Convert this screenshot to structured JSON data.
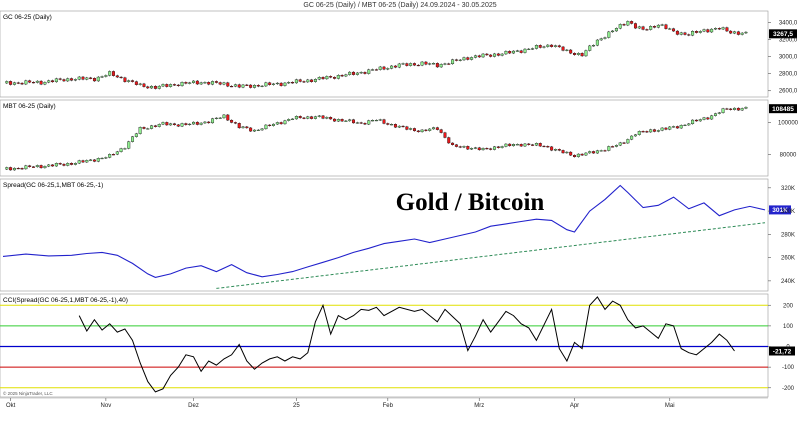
{
  "header": "GC 06-25 (Daily) / MBT 06-25 (Daily)  24.09.2024 - 30.05.2025",
  "watermark": "Gold / Bitcoin",
  "copyright": "© 2025 NinjaTrader, LLC",
  "colors": {
    "bull": "#90EE90",
    "bear": "#E8191C",
    "spread_line": "#2222CC",
    "trendline": "#2E8B57",
    "cci_line": "#000000",
    "level_200": "#E0E000",
    "level_100": "#32CD32",
    "level_0": "#0000CC",
    "level_m100": "#CC0000"
  },
  "x_labels": [
    "Okt",
    "Nov",
    "Dez",
    "25",
    "Feb",
    "Mrz",
    "Apr",
    "Mai"
  ],
  "chart_data": [
    {
      "type": "candlestick",
      "title": "GC 06-25 (Daily)",
      "y_ticks": [
        "3400,0",
        "3200,0",
        "3000,0",
        "2800,0",
        "2600,0"
      ],
      "ylim": [
        2550,
        3500
      ],
      "last_value": "3267,5",
      "close_path": [
        [
          0,
          2690
        ],
        [
          10,
          2700
        ],
        [
          18,
          2740
        ],
        [
          24,
          2740
        ],
        [
          28,
          2800
        ],
        [
          32,
          2730
        ],
        [
          36,
          2660
        ],
        [
          40,
          2640
        ],
        [
          46,
          2680
        ],
        [
          52,
          2700
        ],
        [
          58,
          2680
        ],
        [
          62,
          2650
        ],
        [
          66,
          2660
        ],
        [
          72,
          2680
        ],
        [
          80,
          2720
        ],
        [
          86,
          2760
        ],
        [
          92,
          2800
        ],
        [
          98,
          2850
        ],
        [
          104,
          2900
        ],
        [
          110,
          2920
        ],
        [
          114,
          2900
        ],
        [
          118,
          2940
        ],
        [
          122,
          2990
        ],
        [
          126,
          3010
        ],
        [
          132,
          3040
        ],
        [
          138,
          3090
        ],
        [
          144,
          3140
        ],
        [
          148,
          3060
        ],
        [
          152,
          3020
        ],
        [
          156,
          3190
        ],
        [
          160,
          3300
        ],
        [
          164,
          3420
        ],
        [
          166,
          3350
        ],
        [
          168,
          3310
        ],
        [
          172,
          3380
        ],
        [
          176,
          3290
        ],
        [
          180,
          3260
        ],
        [
          184,
          3310
        ],
        [
          188,
          3330
        ],
        [
          191,
          3290
        ],
        [
          195,
          3267.5
        ]
      ]
    },
    {
      "type": "candlestick",
      "title": "MBT 06-25 (Daily)",
      "y_ticks": [
        "100000",
        "80000"
      ],
      "ylim": [
        68000,
        112000
      ],
      "last_value": "108485",
      "close_path": [
        [
          0,
          71000
        ],
        [
          8,
          72500
        ],
        [
          16,
          74000
        ],
        [
          22,
          76000
        ],
        [
          28,
          79000
        ],
        [
          32,
          85000
        ],
        [
          36,
          96000
        ],
        [
          42,
          99000
        ],
        [
          48,
          98500
        ],
        [
          54,
          100500
        ],
        [
          58,
          104000
        ],
        [
          62,
          97000
        ],
        [
          66,
          95000
        ],
        [
          70,
          98000
        ],
        [
          76,
          102500
        ],
        [
          82,
          103500
        ],
        [
          88,
          101500
        ],
        [
          94,
          99500
        ],
        [
          98,
          101500
        ],
        [
          104,
          97000
        ],
        [
          110,
          94500
        ],
        [
          114,
          96500
        ],
        [
          118,
          85000
        ],
        [
          122,
          84500
        ],
        [
          126,
          83000
        ],
        [
          130,
          85000
        ],
        [
          136,
          86500
        ],
        [
          142,
          85500
        ],
        [
          146,
          82000
        ],
        [
          150,
          79500
        ],
        [
          154,
          81000
        ],
        [
          158,
          83500
        ],
        [
          162,
          86500
        ],
        [
          166,
          93000
        ],
        [
          170,
          95000
        ],
        [
          174,
          96000
        ],
        [
          178,
          98000
        ],
        [
          182,
          101000
        ],
        [
          186,
          104000
        ],
        [
          190,
          108500
        ],
        [
          195,
          108485
        ]
      ]
    },
    {
      "type": "line",
      "title": "Spread(GC 06-25,1,MBT 06-25,-1)",
      "y_ticks": [
        "320K",
        "300K",
        "280K",
        "260K",
        "240K"
      ],
      "ylim": [
        233000,
        325000
      ],
      "last_value": "301K",
      "series": [
        {
          "values": [
            [
              0,
              261000
            ],
            [
              6,
              263000
            ],
            [
              12,
              261500
            ],
            [
              18,
              262000
            ],
            [
              22,
              263500
            ],
            [
              26,
              264500
            ],
            [
              30,
              262000
            ],
            [
              34,
              255000
            ],
            [
              38,
              246000
            ],
            [
              40,
              243000
            ],
            [
              44,
              246000
            ],
            [
              48,
              251000
            ],
            [
              52,
              253000
            ],
            [
              56,
              248000
            ],
            [
              60,
              254000
            ],
            [
              64,
              247000
            ],
            [
              68,
              243500
            ],
            [
              72,
              245500
            ],
            [
              76,
              248000
            ],
            [
              80,
              252000
            ],
            [
              84,
              256000
            ],
            [
              88,
              260000
            ],
            [
              92,
              264500
            ],
            [
              96,
              268000
            ],
            [
              100,
              272000
            ],
            [
              104,
              274000
            ],
            [
              108,
              276000
            ],
            [
              112,
              273000
            ],
            [
              116,
              276000
            ],
            [
              120,
              279000
            ],
            [
              124,
              282000
            ],
            [
              128,
              287000
            ],
            [
              132,
              289000
            ],
            [
              136,
              291000
            ],
            [
              140,
              293000
            ],
            [
              144,
              292000
            ],
            [
              148,
              284000
            ],
            [
              150,
              282000
            ],
            [
              154,
              300000
            ],
            [
              158,
              310000
            ],
            [
              162,
              322000
            ],
            [
              164,
              316000
            ],
            [
              168,
              303000
            ],
            [
              172,
              305000
            ],
            [
              176,
              312000
            ],
            [
              180,
              302000
            ],
            [
              184,
              307000
            ],
            [
              188,
              296000
            ],
            [
              192,
              301000
            ],
            [
              196,
              304000
            ],
            [
              200,
              301000
            ]
          ]
        }
      ],
      "trendline": [
        [
          56,
          233500
        ],
        [
          200,
          290000
        ]
      ]
    },
    {
      "type": "line",
      "title": "CCI(Spread(GC 06-25,1,MBT 06-25,-1),40)",
      "y_ticks": [
        "200",
        "100",
        "0",
        "-100",
        "-200"
      ],
      "ylim": [
        -235,
        240
      ],
      "last_value": "-21,72",
      "levels": [
        200,
        100,
        0,
        -100,
        -200
      ],
      "series": [
        {
          "values": [
            [
              20,
              150
            ],
            [
              22,
              75
            ],
            [
              24,
              130
            ],
            [
              26,
              80
            ],
            [
              28,
              110
            ],
            [
              30,
              70
            ],
            [
              32,
              85
            ],
            [
              34,
              30
            ],
            [
              36,
              -80
            ],
            [
              38,
              -170
            ],
            [
              40,
              -220
            ],
            [
              42,
              -205
            ],
            [
              44,
              -140
            ],
            [
              46,
              -100
            ],
            [
              48,
              -40
            ],
            [
              50,
              -50
            ],
            [
              52,
              -120
            ],
            [
              54,
              -70
            ],
            [
              56,
              -90
            ],
            [
              58,
              -60
            ],
            [
              60,
              -40
            ],
            [
              62,
              10
            ],
            [
              64,
              -70
            ],
            [
              66,
              -110
            ],
            [
              68,
              -80
            ],
            [
              70,
              -60
            ],
            [
              72,
              -50
            ],
            [
              74,
              -70
            ],
            [
              76,
              -50
            ],
            [
              78,
              -60
            ],
            [
              80,
              -30
            ],
            [
              82,
              120
            ],
            [
              84,
              200
            ],
            [
              86,
              60
            ],
            [
              88,
              150
            ],
            [
              90,
              130
            ],
            [
              92,
              150
            ],
            [
              94,
              180
            ],
            [
              96,
              175
            ],
            [
              98,
              190
            ],
            [
              100,
              150
            ],
            [
              104,
              190
            ],
            [
              108,
              170
            ],
            [
              110,
              180
            ],
            [
              112,
              150
            ],
            [
              114,
              120
            ],
            [
              116,
              180
            ],
            [
              118,
              145
            ],
            [
              120,
              110
            ],
            [
              122,
              -20
            ],
            [
              124,
              50
            ],
            [
              126,
              130
            ],
            [
              128,
              70
            ],
            [
              130,
              120
            ],
            [
              132,
              170
            ],
            [
              134,
              150
            ],
            [
              136,
              110
            ],
            [
              138,
              90
            ],
            [
              140,
              30
            ],
            [
              144,
              180
            ],
            [
              146,
              -10
            ],
            [
              148,
              -70
            ],
            [
              150,
              20
            ],
            [
              152,
              -10
            ],
            [
              154,
              200
            ],
            [
              156,
              240
            ],
            [
              158,
              180
            ],
            [
              160,
              220
            ],
            [
              162,
              200
            ],
            [
              164,
              130
            ],
            [
              166,
              90
            ],
            [
              168,
              100
            ],
            [
              170,
              70
            ],
            [
              172,
              40
            ],
            [
              174,
              110
            ],
            [
              176,
              100
            ],
            [
              178,
              -10
            ],
            [
              180,
              -30
            ],
            [
              182,
              -40
            ],
            [
              184,
              -10
            ],
            [
              186,
              20
            ],
            [
              188,
              60
            ],
            [
              190,
              30
            ],
            [
              192,
              -21.72
            ]
          ]
        }
      ]
    }
  ]
}
